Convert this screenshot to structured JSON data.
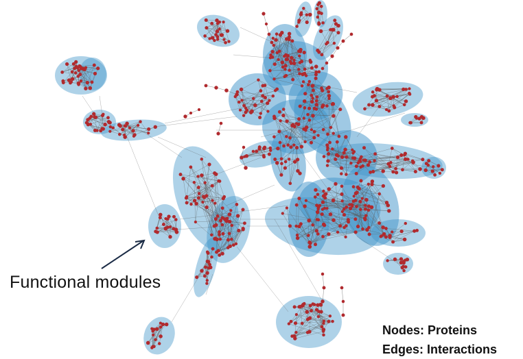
{
  "annotation": {
    "label": "Functional modules"
  },
  "legend": {
    "nodes_label": "Nodes: Proteins",
    "edges_label": "Edges: Interactions"
  },
  "colors": {
    "module_fill": "#3f93c9",
    "module_fill_dense": "#2a78b3",
    "node": "#b02a2e",
    "edge": "#5a5a5a",
    "arrow": "#1a2b45"
  }
}
